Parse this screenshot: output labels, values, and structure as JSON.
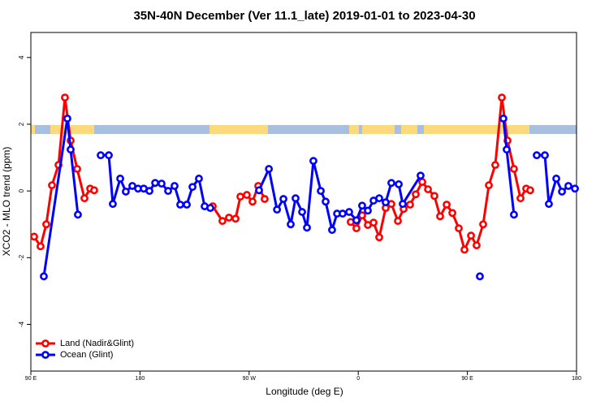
{
  "chart_data": {
    "type": "line",
    "title": "35N-40N December (Ver 11.1_late)   2019-01-01 to 2023-04-30",
    "x_label": "Longitude (deg E)",
    "y_label": "XCO2 - MLO trend (ppm)",
    "xlim": [
      90,
      540
    ],
    "ylim": [
      -5.4,
      4.75
    ],
    "xticks": [
      {
        "value": 90,
        "label": "90 E"
      },
      180,
      {
        "value": 270,
        "label": "90 W"
      },
      {
        "value": 360,
        "label": "0"
      },
      {
        "value": 450,
        "label": "90 E"
      },
      {
        "value": 540,
        "label": "180"
      }
    ],
    "yticks": [
      -4,
      -2,
      0,
      2,
      4
    ],
    "legend": "bottom-left",
    "series": [
      {
        "name": "Land (Nadir&Glint)",
        "color": "#ff0000",
        "x": [
          92.7,
          98.0,
          102.7,
          107.4,
          112.8,
          118.1,
          122.8,
          128.2,
          134.2,
          138.9,
          142.2,
          null,
          240.0,
          248.0,
          253.4,
          258.8,
          262.8,
          268.1,
          272.8,
          277.5,
          282.8,
          null,
          353.8,
          358.5,
          363.2,
          367.9,
          372.6,
          377.3,
          382.6,
          387.3,
          392.7,
          397.4,
          402.7,
          407.4,
          412.8,
          417.5,
          422.8,
          427.5,
          432.9,
          437.6,
          442.9,
          447.6,
          453.0,
          457.6,
          463.0,
          467.7,
          473.0,
          478.4,
          483.1,
          488.4,
          493.8,
          498.5,
          501.8
        ],
        "values": [
          -1.37,
          -1.66,
          -1.0,
          0.17,
          0.78,
          2.8,
          1.51,
          0.66,
          -0.22,
          0.07,
          0.02,
          null,
          -0.46,
          -0.9,
          -0.8,
          -0.83,
          -0.17,
          -0.12,
          -0.32,
          0.15,
          -0.24,
          null,
          -0.93,
          -1.12,
          -0.73,
          -1.02,
          -0.95,
          -1.39,
          -0.51,
          -0.39,
          -0.9,
          -0.54,
          -0.41,
          -0.1,
          0.27,
          0.05,
          -0.15,
          -0.76,
          -0.41,
          -0.66,
          -1.12,
          -1.76,
          -1.34,
          -1.63,
          -1.0,
          0.17,
          0.78,
          2.8,
          1.51,
          0.66,
          -0.22,
          0.07,
          0.02
        ]
      },
      {
        "name": "Ocean (Glint)",
        "color": "#0000ff",
        "x": [
          100.7,
          120.1,
          122.8,
          128.8,
          null,
          147.6,
          154.3,
          157.6,
          163.7,
          168.3,
          173.7,
          178.4,
          183.1,
          187.8,
          192.5,
          197.8,
          203.2,
          208.5,
          213.2,
          218.6,
          223.3,
          228.6,
          233.3,
          238.0,
          null,
          278.2,
          286.3,
          293.0,
          298.3,
          304.3,
          308.3,
          313.7,
          317.7,
          323.0,
          329.1,
          333.1,
          338.4,
          342.5,
          347.1,
          352.5,
          358.5,
          363.2,
          367.9,
          372.6,
          377.3,
          382.6,
          387.3,
          393.4,
          396.7,
          411.4,
          null,
          460.3,
          null,
          479.7,
          482.4,
          488.4,
          null,
          507.2,
          513.9,
          517.2,
          523.3,
          528.0,
          533.3,
          538.7
        ],
        "values": [
          -2.56,
          2.17,
          1.24,
          -0.71,
          null,
          1.07,
          1.07,
          -0.39,
          0.37,
          -0.02,
          0.15,
          0.07,
          0.07,
          0.0,
          0.24,
          0.22,
          0.0,
          0.15,
          -0.41,
          -0.41,
          0.12,
          0.37,
          -0.46,
          -0.51,
          null,
          0.02,
          0.66,
          -0.56,
          -0.24,
          -1.0,
          -0.22,
          -0.63,
          -1.1,
          0.9,
          0.0,
          -0.32,
          -1.17,
          -0.68,
          -0.68,
          -0.63,
          -0.88,
          -0.44,
          -0.59,
          -0.29,
          -0.22,
          -0.34,
          0.24,
          0.2,
          -0.39,
          0.46,
          null,
          -2.56,
          null,
          2.17,
          1.24,
          -0.71,
          null,
          1.07,
          1.07,
          -0.39,
          0.37,
          -0.02,
          0.15,
          0.07
        ]
      }
    ]
  }
}
